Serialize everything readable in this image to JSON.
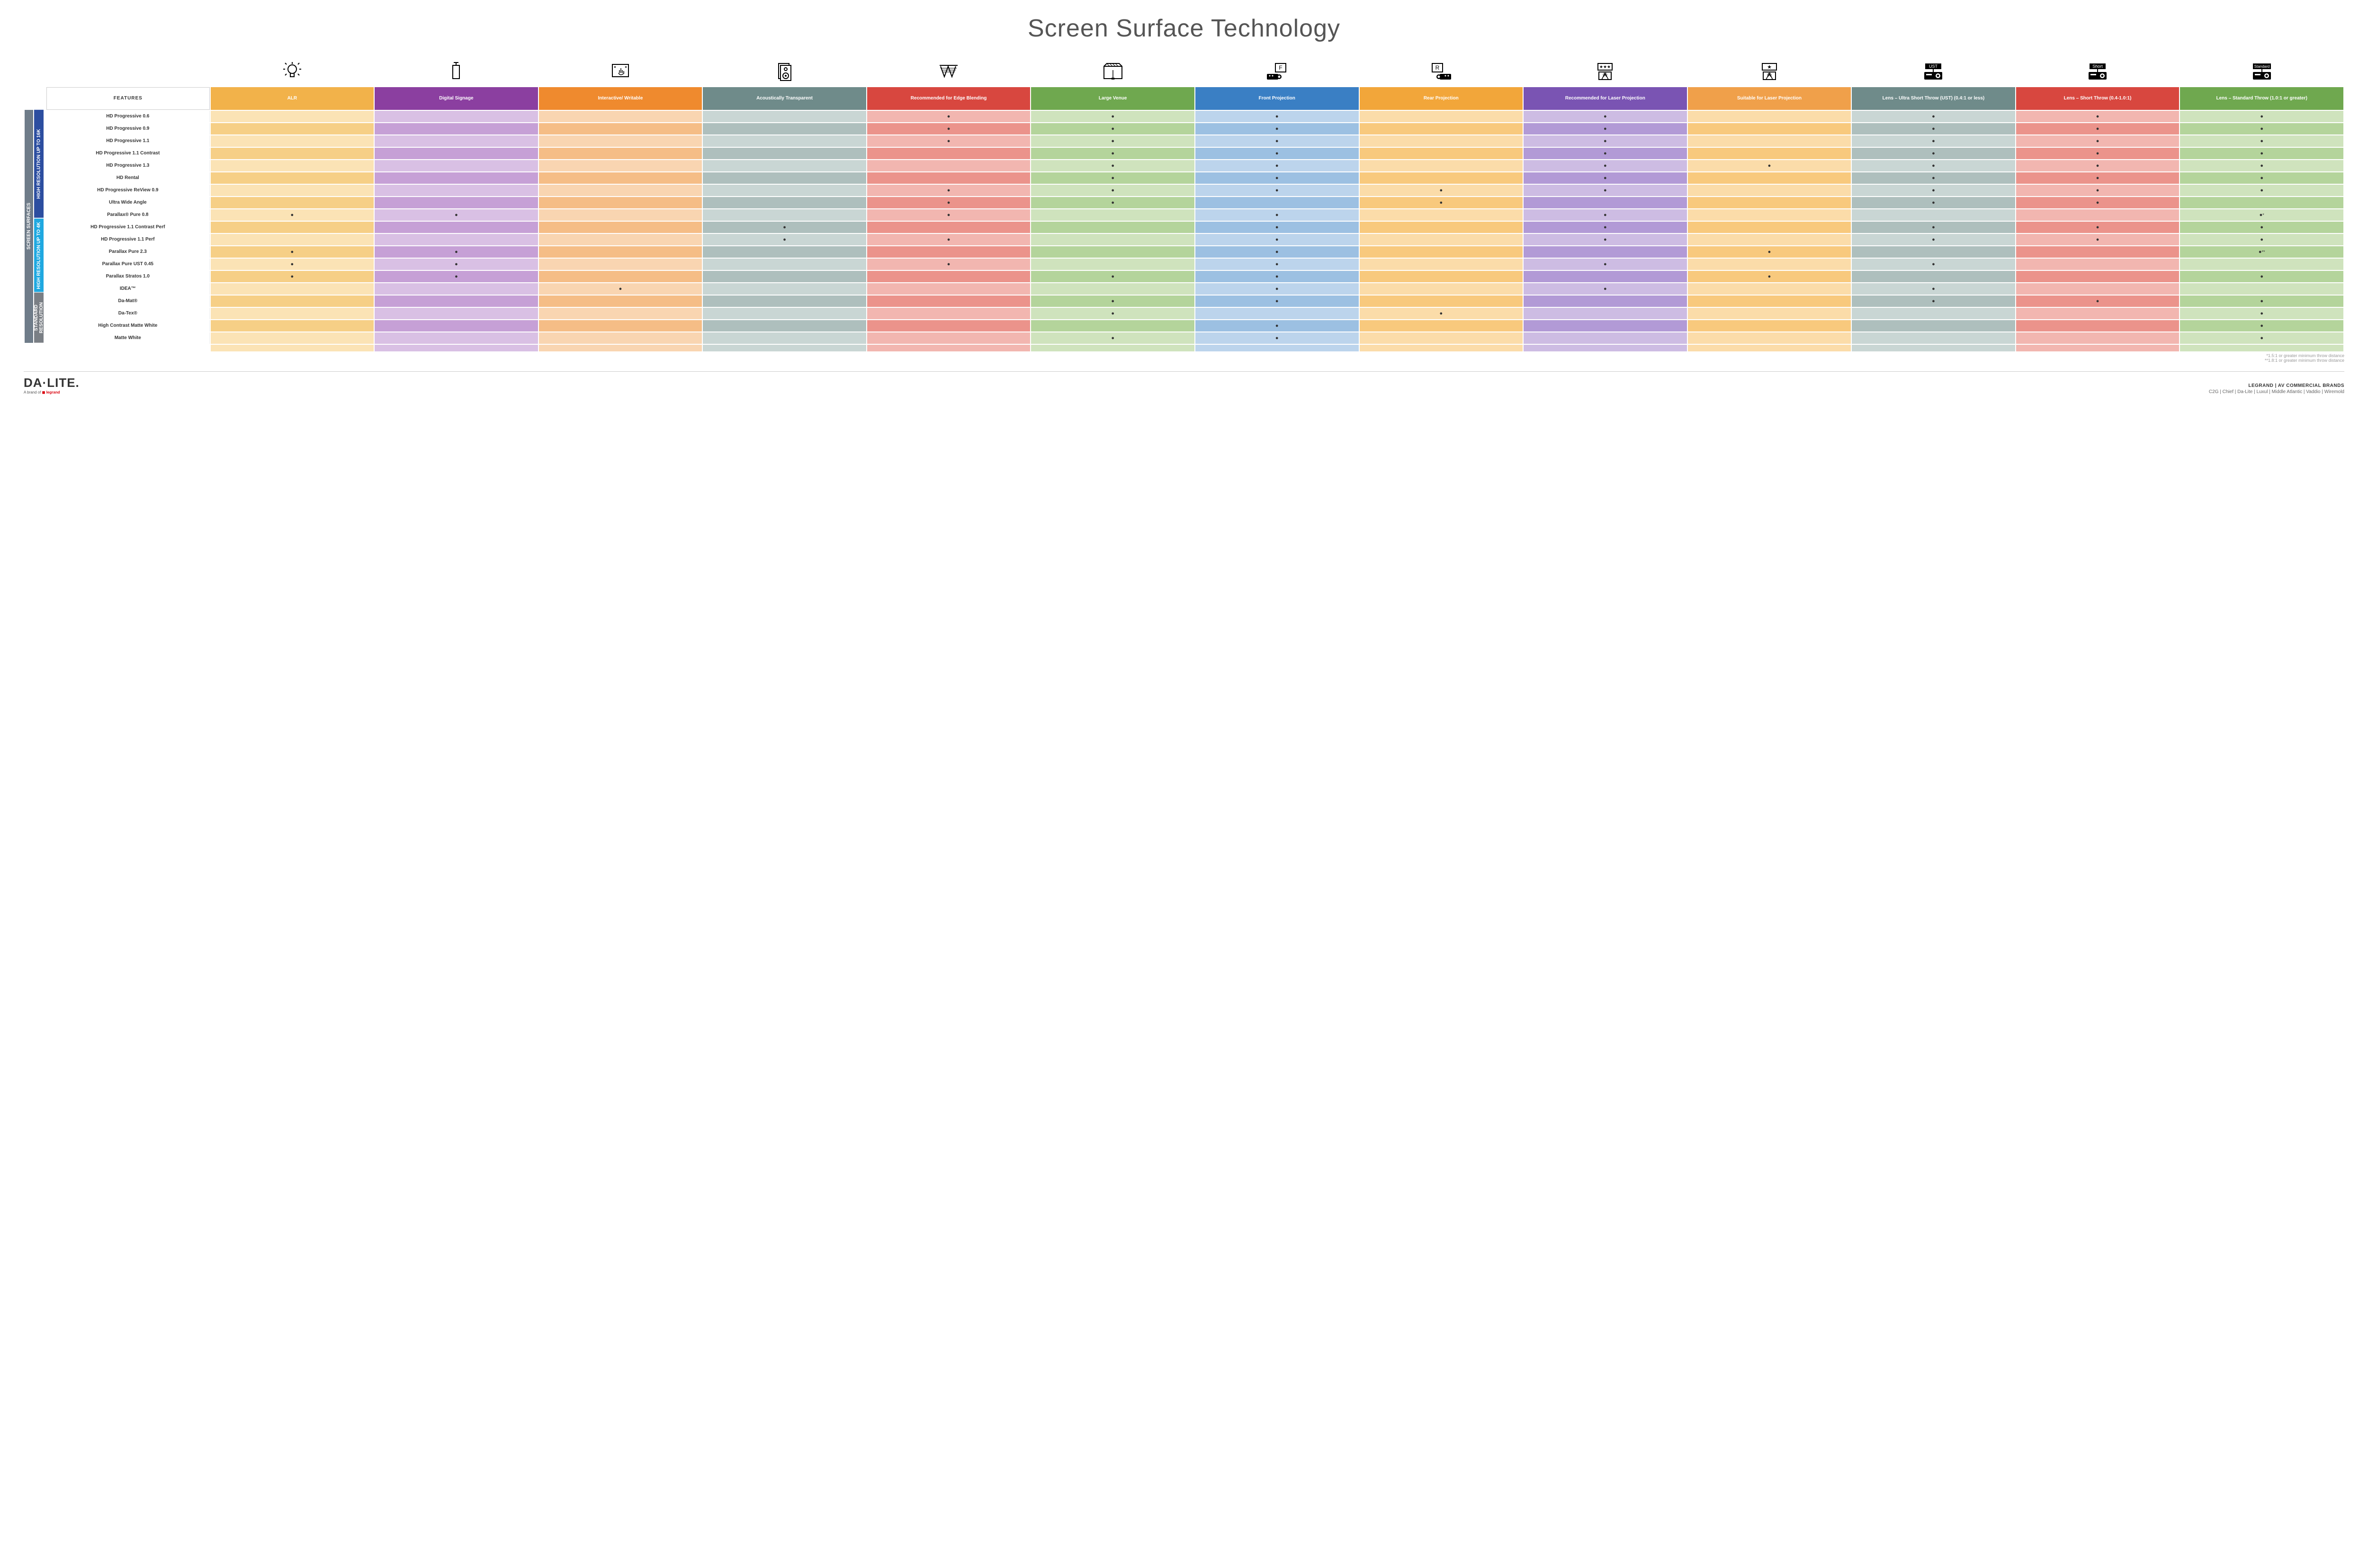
{
  "title": "Screen Surface Technology",
  "colors": {
    "columns": [
      "#f2b24a",
      "#8b3fa0",
      "#ef8a2e",
      "#6f8b8a",
      "#d8473f",
      "#6fa84f",
      "#3a7fc4",
      "#f2a63a",
      "#7a54b3",
      "#f0a04a",
      "#6f8b8a",
      "#d8473f",
      "#6fa84f"
    ],
    "cell_light": [
      "#fbe3b5",
      "#d9c0e4",
      "#f9d5b1",
      "#c9d6d4",
      "#f2b6b0",
      "#cfe3bd",
      "#bcd4ec",
      "#fbdca9",
      "#cdbce3",
      "#fbdca9",
      "#c9d6d4",
      "#f2b6b0",
      "#cfe3bd"
    ],
    "cell_dark": [
      "#f6cf86",
      "#c6a0d6",
      "#f5bd86",
      "#aebfbd",
      "#eb938b",
      "#b4d49b",
      "#9cc0e2",
      "#f8c97d",
      "#b29ad6",
      "#f8c97d",
      "#aebfbd",
      "#eb938b",
      "#b4d49b"
    ],
    "rail_outer": "#6f7c89",
    "rail_16k": "#2c4ea0",
    "rail_4k": "#1fa8e0",
    "rail_std": "#7a7f85"
  },
  "features_label": "FEATURES",
  "columns": [
    {
      "label": "ALR",
      "icon": "bulb"
    },
    {
      "label": "Digital Signage",
      "icon": "signage"
    },
    {
      "label": "Interactive/ Writable",
      "icon": "touch"
    },
    {
      "label": "Acoustically Transparent",
      "icon": "speaker"
    },
    {
      "label": "Recommended for Edge Blending",
      "icon": "blend"
    },
    {
      "label": "Large Venue",
      "icon": "venue"
    },
    {
      "label": "Front Projection",
      "icon": "front"
    },
    {
      "label": "Rear Projection",
      "icon": "rear"
    },
    {
      "label": "Recommended for Laser Projection",
      "icon": "laser3"
    },
    {
      "label": "Suitable for Laser Projection",
      "icon": "laser1"
    },
    {
      "label": "Lens – Ultra Short Throw (UST) (0.4:1 or less)",
      "icon": "ust"
    },
    {
      "label": "Lens – Short Throw (0.4-1.0:1)",
      "icon": "short"
    },
    {
      "label": "Lens – Standard Throw (1.0:1 or greater)",
      "icon": "standard"
    }
  ],
  "side_labels": {
    "outer": "SCREEN SURFACES",
    "g1": "HIGH RESOLUTION UP TO 16K",
    "g2": "HIGH RESOLUTION UP TO 4K",
    "g3": "STANDARD RESOLUTION"
  },
  "rows": [
    {
      "group": 1,
      "name": "HD Progressive 0.6",
      "cells": [
        "",
        "",
        "",
        "",
        "•",
        "•",
        "•",
        "",
        "•",
        "",
        "•",
        "•",
        "•"
      ]
    },
    {
      "group": 1,
      "name": "HD Progressive 0.9",
      "cells": [
        "",
        "",
        "",
        "",
        "•",
        "•",
        "•",
        "",
        "•",
        "",
        "•",
        "•",
        "•"
      ]
    },
    {
      "group": 1,
      "name": "HD Progressive 1.1",
      "cells": [
        "",
        "",
        "",
        "",
        "•",
        "•",
        "•",
        "",
        "•",
        "",
        "•",
        "•",
        "•"
      ]
    },
    {
      "group": 1,
      "name": "HD Progressive 1.1 Contrast",
      "cells": [
        "",
        "",
        "",
        "",
        "",
        "•",
        "•",
        "",
        "•",
        "",
        "•",
        "•",
        "•"
      ]
    },
    {
      "group": 1,
      "name": "HD Progressive 1.3",
      "cells": [
        "",
        "",
        "",
        "",
        "",
        "•",
        "•",
        "",
        "•",
        "•",
        "•",
        "•",
        "•"
      ]
    },
    {
      "group": 1,
      "name": "HD Rental",
      "cells": [
        "",
        "",
        "",
        "",
        "",
        "•",
        "•",
        "",
        "•",
        "",
        "•",
        "•",
        "•"
      ]
    },
    {
      "group": 1,
      "name": "HD Progressive ReView 0.9",
      "cells": [
        "",
        "",
        "",
        "",
        "•",
        "•",
        "•",
        "•",
        "•",
        "",
        "•",
        "•",
        "•"
      ]
    },
    {
      "group": 1,
      "name": "Ultra Wide Angle",
      "cells": [
        "",
        "",
        "",
        "",
        "•",
        "•",
        "",
        "•",
        "",
        "",
        "•",
        "•",
        ""
      ]
    },
    {
      "group": 1,
      "name": "Parallax® Pure 0.8",
      "cells": [
        "•",
        "•",
        "",
        "",
        "•",
        "",
        "•",
        "",
        "•",
        "",
        "",
        "",
        "•*"
      ]
    },
    {
      "group": 2,
      "name": "HD Progressive 1.1 Contrast Perf",
      "cells": [
        "",
        "",
        "",
        "•",
        "",
        "",
        "•",
        "",
        "•",
        "",
        "•",
        "•",
        "•"
      ]
    },
    {
      "group": 2,
      "name": "HD Progressive 1.1 Perf",
      "cells": [
        "",
        "",
        "",
        "•",
        "•",
        "",
        "•",
        "",
        "•",
        "",
        "•",
        "•",
        "•"
      ]
    },
    {
      "group": 2,
      "name": "Parallax Pure 2.3",
      "cells": [
        "•",
        "•",
        "",
        "",
        "",
        "",
        "•",
        "",
        "",
        "•",
        "",
        "",
        "•**"
      ]
    },
    {
      "group": 2,
      "name": "Parallax Pure UST 0.45",
      "cells": [
        "•",
        "•",
        "",
        "",
        "•",
        "",
        "•",
        "",
        "•",
        "",
        "•",
        "",
        ""
      ]
    },
    {
      "group": 2,
      "name": "Parallax Stratos 1.0",
      "cells": [
        "•",
        "•",
        "",
        "",
        "",
        "•",
        "•",
        "",
        "",
        "•",
        "",
        "",
        "•"
      ]
    },
    {
      "group": 2,
      "name": "IDEA™",
      "cells": [
        "",
        "",
        "•",
        "",
        "",
        "",
        "•",
        "",
        "•",
        "",
        "•",
        "",
        ""
      ]
    },
    {
      "group": 3,
      "name": "Da-Mat®",
      "cells": [
        "",
        "",
        "",
        "",
        "",
        "•",
        "•",
        "",
        "",
        "",
        "•",
        "•",
        "•"
      ]
    },
    {
      "group": 3,
      "name": "Da-Tex®",
      "cells": [
        "",
        "",
        "",
        "",
        "",
        "•",
        "",
        "•",
        "",
        "",
        "",
        "",
        "•"
      ]
    },
    {
      "group": 3,
      "name": "High Contrast Matte White",
      "cells": [
        "",
        "",
        "",
        "",
        "",
        "",
        "•",
        "",
        "",
        "",
        "",
        "",
        "•"
      ]
    },
    {
      "group": 3,
      "name": "Matte White",
      "cells": [
        "",
        "",
        "",
        "",
        "",
        "•",
        "•",
        "",
        "",
        "",
        "",
        "",
        "•"
      ]
    }
  ],
  "footnotes": [
    "*1.5:1 or greater minimum throw distance",
    "**1.8:1 or greater minimum throw distance"
  ],
  "footer": {
    "logo": "DA·LITE.",
    "logo_sub_prefix": "A brand of ",
    "logo_sub_brand": "legrand",
    "right_title": "LEGRAND | AV COMMERCIAL BRANDS",
    "right_brands": "C2G  |  Chief  |  Da-Lite  |  Luxul  |  Middle Atlantic  |  Vaddio  |  Wiremold"
  }
}
